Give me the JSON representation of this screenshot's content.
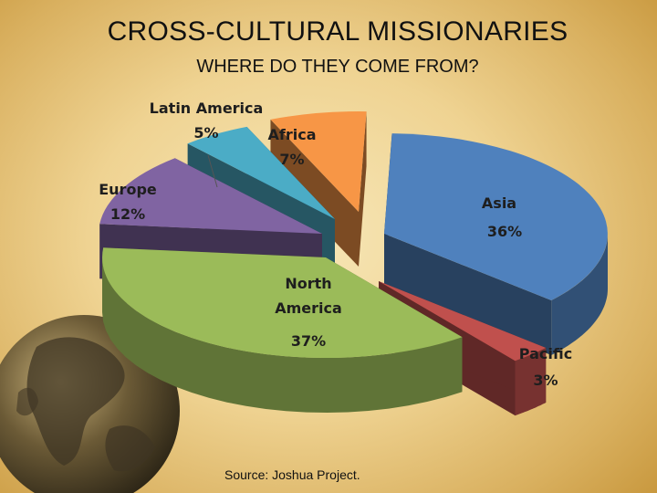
{
  "slide": {
    "title": "CROSS-CULTURAL MISSIONARIES",
    "subtitle": "WHERE DO THEY COME FROM?",
    "source": "Source: Joshua Project."
  },
  "chart_data": {
    "type": "pie",
    "style": "exploded 3D pie",
    "title": "",
    "slices": [
      {
        "name": "Asia",
        "value": 36,
        "label": "36%",
        "color": "#4f81bd"
      },
      {
        "name": "Pacific",
        "value": 3,
        "label": "3%",
        "color": "#c0504d"
      },
      {
        "name": "North America",
        "value": 37,
        "label": "37%",
        "color": "#9bbb59"
      },
      {
        "name": "Europe",
        "value": 12,
        "label": "12%",
        "color": "#8064a2"
      },
      {
        "name": "Latin America",
        "value": 5,
        "label": "5%",
        "color": "#4bacc6"
      },
      {
        "name": "Africa",
        "value": 7,
        "label": "7%",
        "color": "#f79646"
      }
    ]
  },
  "decoration": {
    "globe_icon": "globe-icon"
  }
}
